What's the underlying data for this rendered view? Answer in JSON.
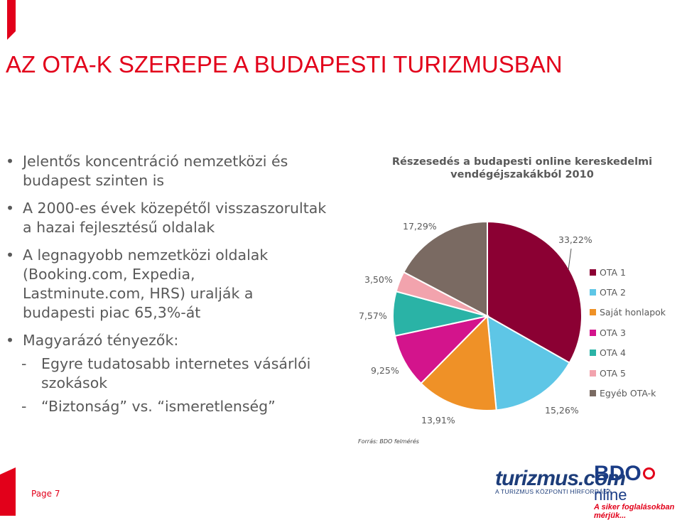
{
  "slide": {
    "title": "AZ OTA-K SZEREPE A BUDAPESTI TURIZMUSBAN",
    "page_label": "Page 7",
    "source": "Forrás: BDO felmérés"
  },
  "bullets": [
    {
      "text_line1": "Jelentős koncentráció nemzetközi és",
      "text_line2": "budapest szinten is"
    },
    {
      "text_line1": "A 2000-es évek közepétől visszaszorultak",
      "text_line2": "a hazai fejlesztésű oldalak"
    },
    {
      "text_line1": "A legnagyobb nemzetközi oldalak",
      "text_line2": "(Booking.com, Expedia,",
      "text_line3": "Lastminute.com, HRS) uralják a",
      "text_line4": "budapesti piac 65,3%-át"
    },
    {
      "text_line1": "Magyarázó tényezők:"
    }
  ],
  "sub_bullets": [
    {
      "dash": "-",
      "text_line1": "Egyre tudatosabb internetes vásárlói",
      "text_line2": "szokások"
    },
    {
      "dash": "-",
      "text_line1": "“Biztonság” vs. “ismeretlenség”"
    }
  ],
  "chart_data": {
    "type": "pie",
    "title": "Részesedés a budapesti online kereskedelmi vendégéjszakákból 2010",
    "legend_position": "right",
    "slices": [
      {
        "name": "OTA 1",
        "value": 33.22,
        "label": "33,22%",
        "color": "#8b0033"
      },
      {
        "name": "OTA 2",
        "value": 15.26,
        "label": "15,26%",
        "color": "#5ec6e6"
      },
      {
        "name": "Saját honlapok",
        "value": 13.91,
        "label": "13,91%",
        "color": "#ef9127"
      },
      {
        "name": "OTA 3",
        "value": 9.25,
        "label": "9,25%",
        "color": "#d3148c"
      },
      {
        "name": "OTA 4",
        "value": 7.57,
        "label": "7,57%",
        "color": "#2ab3a6"
      },
      {
        "name": "OTA 5",
        "value": 3.5,
        "label": "3,50%",
        "color": "#f2a3ad"
      },
      {
        "name": "Egyéb OTA-k",
        "value": 17.29,
        "label": "17,29%",
        "color": "#7a6a62"
      }
    ]
  },
  "logos": {
    "turizmus_main": "turizmus.com",
    "turizmus_tagline": "A TURIZMUS KÖZPONTI HÍRFORRÁSA",
    "bdo_main": "BDO",
    "bdo_online": "nline",
    "bdo_tagline": "A siker foglalásokban mérjük..."
  },
  "colors": {
    "accent": "#e2001a",
    "text": "#595959"
  }
}
